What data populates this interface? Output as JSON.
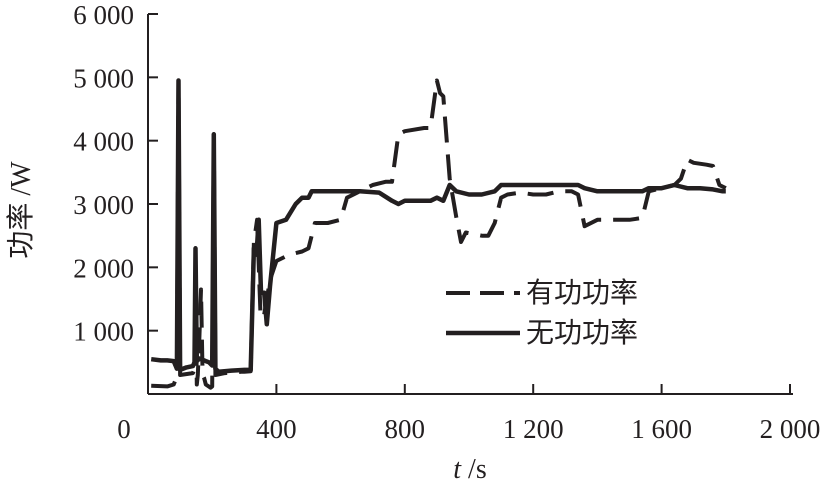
{
  "chart_data": {
    "type": "line",
    "xlabel_var": "t",
    "xlabel_unit": " /s",
    "ylabel": "功率 /W",
    "xlim": [
      0,
      2000
    ],
    "ylim": [
      0,
      6000
    ],
    "x_ticks": [
      {
        "value": 0,
        "label": "0"
      },
      {
        "value": 400,
        "label": "400"
      },
      {
        "value": 800,
        "label": "800"
      },
      {
        "value": 1200,
        "label": "1 200"
      },
      {
        "value": 1600,
        "label": "1 600"
      },
      {
        "value": 2000,
        "label": "2 000"
      }
    ],
    "y_ticks": [
      {
        "value": 1000,
        "label": "1 000"
      },
      {
        "value": 2000,
        "label": "2 000"
      },
      {
        "value": 3000,
        "label": "3 000"
      },
      {
        "value": 4000,
        "label": "4 000"
      },
      {
        "value": 5000,
        "label": "5 000"
      },
      {
        "value": 6000,
        "label": "6 000"
      }
    ],
    "grid": false,
    "legend_position": "center-right",
    "series": [
      {
        "name": "有功功率",
        "style": "dashed",
        "color": "#231f20",
        "points": [
          [
            10,
            130
          ],
          [
            60,
            120
          ],
          [
            80,
            150
          ],
          [
            90,
            280
          ],
          [
            95,
            4930
          ],
          [
            100,
            300
          ],
          [
            140,
            330
          ],
          [
            145,
            400
          ],
          [
            148,
            1900
          ],
          [
            152,
            150
          ],
          [
            155,
            300
          ],
          [
            160,
            900
          ],
          [
            165,
            1650
          ],
          [
            170,
            300
          ],
          [
            175,
            250
          ],
          [
            180,
            150
          ],
          [
            195,
            100
          ],
          [
            200,
            120
          ],
          [
            205,
            4100
          ],
          [
            210,
            300
          ],
          [
            240,
            330
          ],
          [
            290,
            350
          ],
          [
            300,
            350
          ],
          [
            320,
            360
          ],
          [
            330,
            2400
          ],
          [
            340,
            2750
          ],
          [
            350,
            1300
          ],
          [
            360,
            1200
          ],
          [
            380,
            1800
          ],
          [
            400,
            2100
          ],
          [
            440,
            2200
          ],
          [
            480,
            2250
          ],
          [
            500,
            2300
          ],
          [
            520,
            2700
          ],
          [
            560,
            2700
          ],
          [
            600,
            2750
          ],
          [
            620,
            3100
          ],
          [
            700,
            3300
          ],
          [
            740,
            3350
          ],
          [
            760,
            3350
          ],
          [
            780,
            4100
          ],
          [
            800,
            4150
          ],
          [
            860,
            4200
          ],
          [
            880,
            4200
          ],
          [
            900,
            4950
          ],
          [
            910,
            4750
          ],
          [
            920,
            4700
          ],
          [
            940,
            3400
          ],
          [
            960,
            2800
          ],
          [
            975,
            2400
          ],
          [
            990,
            2550
          ],
          [
            1040,
            2500
          ],
          [
            1060,
            2500
          ],
          [
            1080,
            2700
          ],
          [
            1100,
            3100
          ],
          [
            1120,
            3150
          ],
          [
            1160,
            3180
          ],
          [
            1200,
            3150
          ],
          [
            1240,
            3150
          ],
          [
            1280,
            3200
          ],
          [
            1320,
            3200
          ],
          [
            1340,
            3150
          ],
          [
            1360,
            2650
          ],
          [
            1400,
            2750
          ],
          [
            1440,
            2750
          ],
          [
            1480,
            2750
          ],
          [
            1500,
            2750
          ],
          [
            1540,
            2780
          ],
          [
            1560,
            3200
          ],
          [
            1600,
            3250
          ],
          [
            1640,
            3300
          ],
          [
            1660,
            3400
          ],
          [
            1680,
            3700
          ],
          [
            1700,
            3650
          ],
          [
            1740,
            3620
          ],
          [
            1760,
            3600
          ],
          [
            1780,
            3300
          ],
          [
            1800,
            3250
          ]
        ]
      },
      {
        "name": "无功功率",
        "style": "solid",
        "color": "#231f20",
        "points": [
          [
            10,
            550
          ],
          [
            40,
            530
          ],
          [
            60,
            530
          ],
          [
            80,
            520
          ],
          [
            90,
            400
          ],
          [
            95,
            4950
          ],
          [
            100,
            380
          ],
          [
            120,
            420
          ],
          [
            140,
            440
          ],
          [
            145,
            500
          ],
          [
            148,
            2300
          ],
          [
            152,
            520
          ],
          [
            160,
            560
          ],
          [
            180,
            520
          ],
          [
            190,
            500
          ],
          [
            200,
            450
          ],
          [
            205,
            4100
          ],
          [
            210,
            400
          ],
          [
            220,
            350
          ],
          [
            260,
            370
          ],
          [
            300,
            380
          ],
          [
            320,
            380
          ],
          [
            330,
            2300
          ],
          [
            338,
            2200
          ],
          [
            345,
            2750
          ],
          [
            352,
            1600
          ],
          [
            362,
            1600
          ],
          [
            370,
            1100
          ],
          [
            380,
            1700
          ],
          [
            400,
            2700
          ],
          [
            430,
            2750
          ],
          [
            460,
            3000
          ],
          [
            480,
            3100
          ],
          [
            500,
            3100
          ],
          [
            510,
            3200
          ],
          [
            560,
            3200
          ],
          [
            600,
            3200
          ],
          [
            660,
            3200
          ],
          [
            720,
            3180
          ],
          [
            760,
            3050
          ],
          [
            780,
            3000
          ],
          [
            800,
            3050
          ],
          [
            840,
            3050
          ],
          [
            880,
            3050
          ],
          [
            900,
            3100
          ],
          [
            920,
            3050
          ],
          [
            940,
            3300
          ],
          [
            960,
            3200
          ],
          [
            1000,
            3150
          ],
          [
            1040,
            3150
          ],
          [
            1080,
            3200
          ],
          [
            1100,
            3300
          ],
          [
            1160,
            3300
          ],
          [
            1200,
            3300
          ],
          [
            1240,
            3300
          ],
          [
            1300,
            3300
          ],
          [
            1340,
            3300
          ],
          [
            1360,
            3250
          ],
          [
            1400,
            3200
          ],
          [
            1440,
            3200
          ],
          [
            1500,
            3200
          ],
          [
            1540,
            3200
          ],
          [
            1560,
            3250
          ],
          [
            1600,
            3250
          ],
          [
            1640,
            3300
          ],
          [
            1680,
            3250
          ],
          [
            1720,
            3250
          ],
          [
            1760,
            3230
          ],
          [
            1790,
            3200
          ],
          [
            1800,
            3200
          ]
        ]
      }
    ]
  }
}
